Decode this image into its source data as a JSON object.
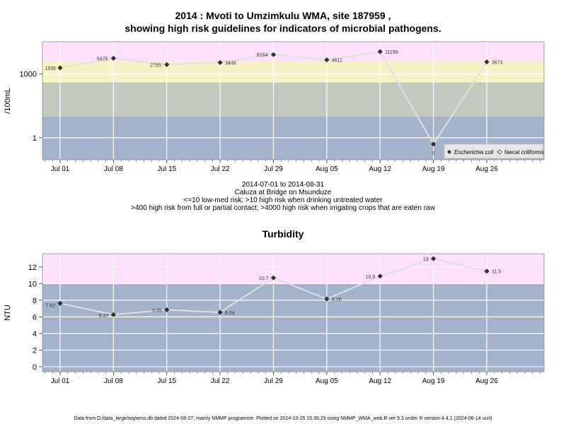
{
  "title_line1": "2014 : Mvoti to Umzimkulu WMA, site 187959 ,",
  "title_line2": "showing high risk guidelines for indicators of microbial pathogens.",
  "subtitle_lines": [
    "2014-07-01 to 2014-08-31",
    "Caluza at Bridge on Msunduze",
    "<=10 low-med risk; >10 high risk when drinking untreated water",
    ">400 high risk from full or partial contact; >4000 high risk when irrigating crops that are eaten raw"
  ],
  "turbidity_title": "Turbidity",
  "footer": "Data from D:/data_large/wq/wms.db dated 2024-08-27, mainly NMMP programme. Plotted on 2024-10-25 15:36:29 using NMMP_WMA_web.R ver 9.3 under R version 4.4.1 (2024-06-14 ucrt)",
  "colors": {
    "band_pink": "#fde0fb",
    "band_yellow": "#f8f3c4",
    "band_grey": "#c3c9bf",
    "band_blue": "#a3b3cb",
    "line": "#e0e0e0",
    "point": "#303030",
    "grid": "#ffffff"
  },
  "chart_data": [
    {
      "type": "line",
      "title": "2014 : Mvoti to Umzimkulu WMA, site 187959 , showing high risk guidelines for indicators of microbial pathogens.",
      "ylabel": "/100mL",
      "y_scale": "log10",
      "x_tick_labels": [
        "Jul 01",
        "Jul 08",
        "Jul 15",
        "Jul 22",
        "Jul 29",
        "Aug 05",
        "Aug 12",
        "Aug 19",
        "Aug 26"
      ],
      "x_tick_dates": [
        "2014-07-01",
        "2014-07-08",
        "2014-07-15",
        "2014-07-22",
        "2014-07-29",
        "2014-08-05",
        "2014-08-12",
        "2014-08-19",
        "2014-08-26"
      ],
      "y_tick_labels": [
        "1",
        "1000"
      ],
      "y_ticks": [
        1,
        1000
      ],
      "bands": [
        {
          "from": 4000,
          "to": null,
          "color": "#fde0fb"
        },
        {
          "from": 400,
          "to": 4000,
          "color": "#f8f3c4"
        },
        {
          "from": 10,
          "to": 400,
          "color": "#c3c9bf"
        },
        {
          "from": null,
          "to": 10,
          "color": "#a3b3cb"
        }
      ],
      "legend": {
        "position": "bottom-right",
        "entries": [
          "Escherichia coli",
          "faecal coliforms"
        ]
      },
      "grid": true,
      "series": [
        {
          "name": "Escherichia coli",
          "points": [
            {
              "x": "2014-07-01",
              "y": 1935,
              "label": "1935"
            },
            {
              "x": "2014-07-08",
              "y": 5475,
              "label": "5475"
            },
            {
              "x": "2014-07-15",
              "y": 2755,
              "label": "2755"
            },
            {
              "x": "2014-07-22",
              "y": 3448,
              "label": "3448"
            },
            {
              "x": "2014-07-29",
              "y": 8164,
              "label": "8164"
            },
            {
              "x": "2014-08-05",
              "y": 4611,
              "label": "4611"
            },
            {
              "x": "2014-08-12",
              "y": 11199,
              "label": "11199"
            },
            {
              "x": "2014-08-19",
              "y": 0.5,
              "label": "0"
            },
            {
              "x": "2014-08-26",
              "y": 3673,
              "label": "3673"
            }
          ]
        }
      ]
    },
    {
      "type": "line",
      "title": "Turbidity",
      "ylabel": "NTU",
      "x_tick_labels": [
        "Jul 01",
        "Jul 08",
        "Jul 15",
        "Jul 22",
        "Jul 29",
        "Aug 05",
        "Aug 12",
        "Aug 19",
        "Aug 26"
      ],
      "x_tick_dates": [
        "2014-07-01",
        "2014-07-08",
        "2014-07-15",
        "2014-07-22",
        "2014-07-29",
        "2014-08-05",
        "2014-08-12",
        "2014-08-19",
        "2014-08-26"
      ],
      "y_tick_labels": [
        "0",
        "2",
        "4",
        "6",
        "8",
        "10",
        "12"
      ],
      "y_ticks": [
        0,
        2,
        4,
        6,
        8,
        10,
        12
      ],
      "ylim": [
        -0.6,
        13.6
      ],
      "bands": [
        {
          "from": 10,
          "to": null,
          "color": "#fde0fb"
        },
        {
          "from": null,
          "to": 10,
          "color": "#a3b3cb"
        }
      ],
      "grid": true,
      "series": [
        {
          "points": [
            {
              "x": "2014-07-01",
              "y": 7.62,
              "label": "7.62"
            },
            {
              "x": "2014-07-08",
              "y": 6.27,
              "label": "6.27"
            },
            {
              "x": "2014-07-15",
              "y": 6.85,
              "label": "6.85"
            },
            {
              "x": "2014-07-22",
              "y": 6.54,
              "label": "6.54"
            },
            {
              "x": "2014-07-29",
              "y": 10.7,
              "label": "10.7"
            },
            {
              "x": "2014-08-05",
              "y": 8.16,
              "label": "8.16"
            },
            {
              "x": "2014-08-12",
              "y": 10.9,
              "label": "10.9"
            },
            {
              "x": "2014-08-19",
              "y": 13,
              "label": "13"
            },
            {
              "x": "2014-08-26",
              "y": 11.5,
              "label": "11.5"
            }
          ]
        }
      ]
    }
  ]
}
